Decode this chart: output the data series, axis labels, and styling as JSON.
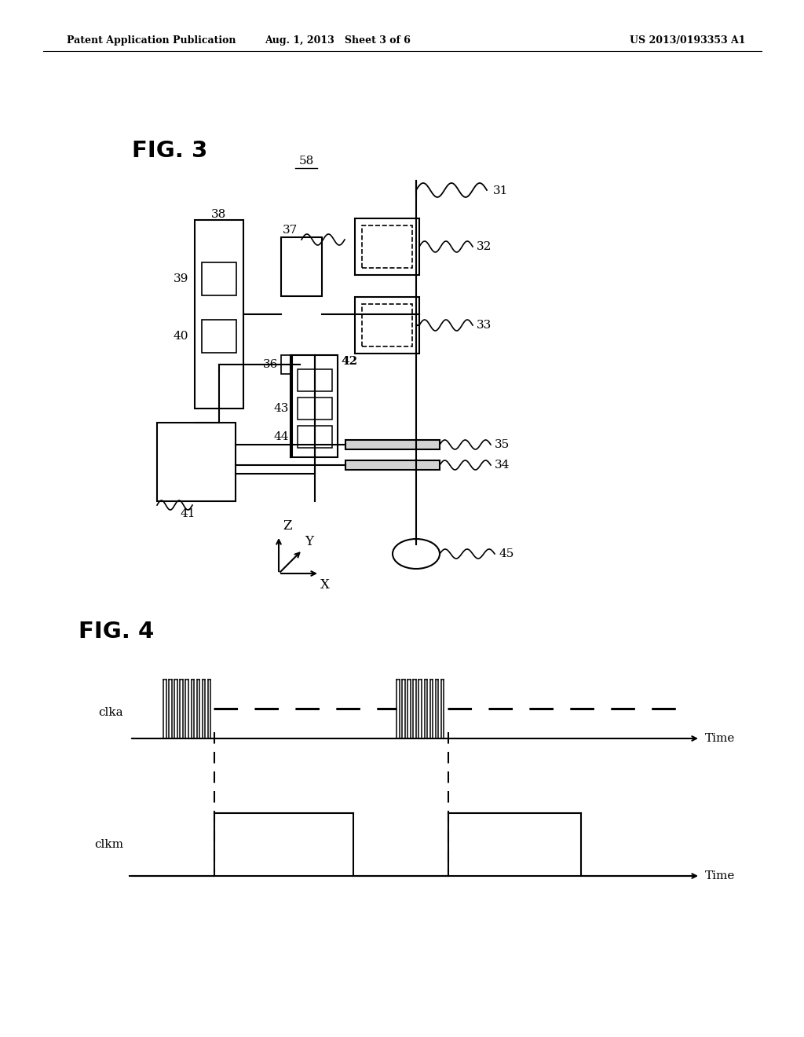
{
  "background_color": "#ffffff",
  "page_header": {
    "left": "Patent Application Publication",
    "center": "Aug. 1, 2013   Sheet 3 of 6",
    "right": "US 2013/0193353 A1"
  }
}
